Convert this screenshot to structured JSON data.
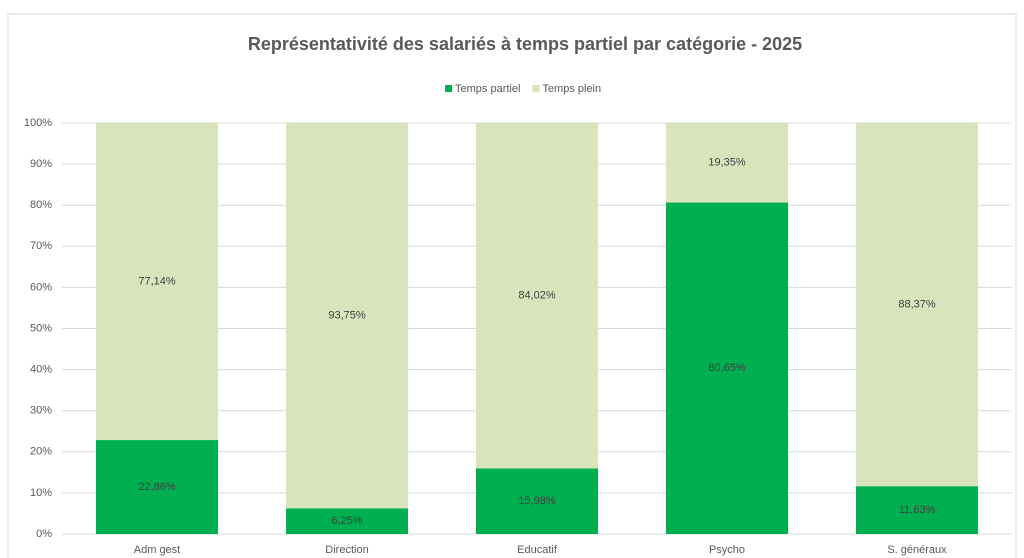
{
  "chart_data": {
    "type": "stacked_bar",
    "title": "Représentativité des salariés à temps partiel par catégorie - 2025",
    "categories": [
      "Adm gest",
      "Direction",
      "Educatif",
      "Psycho",
      "S. généraux"
    ],
    "series": [
      {
        "name": "Temps partiel",
        "color": "#00b050",
        "values": [
          22.86,
          6.25,
          15.98,
          80.65,
          11.63
        ],
        "value_labels": [
          "22,86%",
          "6,25%",
          "15,98%",
          "80,65%",
          "11,63%"
        ]
      },
      {
        "name": "Temps plein",
        "color": "#d8e4bc",
        "values": [
          77.14,
          93.75,
          84.02,
          19.35,
          88.37
        ],
        "value_labels": [
          "77,14%",
          "93,75%",
          "84,02%",
          "19,35%",
          "88,37%"
        ]
      }
    ],
    "ylim": [
      0,
      100
    ],
    "yticks": [
      {
        "value": 0,
        "label": "0%"
      },
      {
        "value": 10,
        "label": "10%"
      },
      {
        "value": 20,
        "label": "20%"
      },
      {
        "value": 30,
        "label": "30%"
      },
      {
        "value": 40,
        "label": "40%"
      },
      {
        "value": 50,
        "label": "50%"
      },
      {
        "value": 60,
        "label": "60%"
      },
      {
        "value": 70,
        "label": "70%"
      },
      {
        "value": 80,
        "label": "80%"
      },
      {
        "value": 90,
        "label": "90%"
      },
      {
        "value": 100,
        "label": "100%"
      }
    ],
    "grid": true,
    "legend": "top"
  }
}
